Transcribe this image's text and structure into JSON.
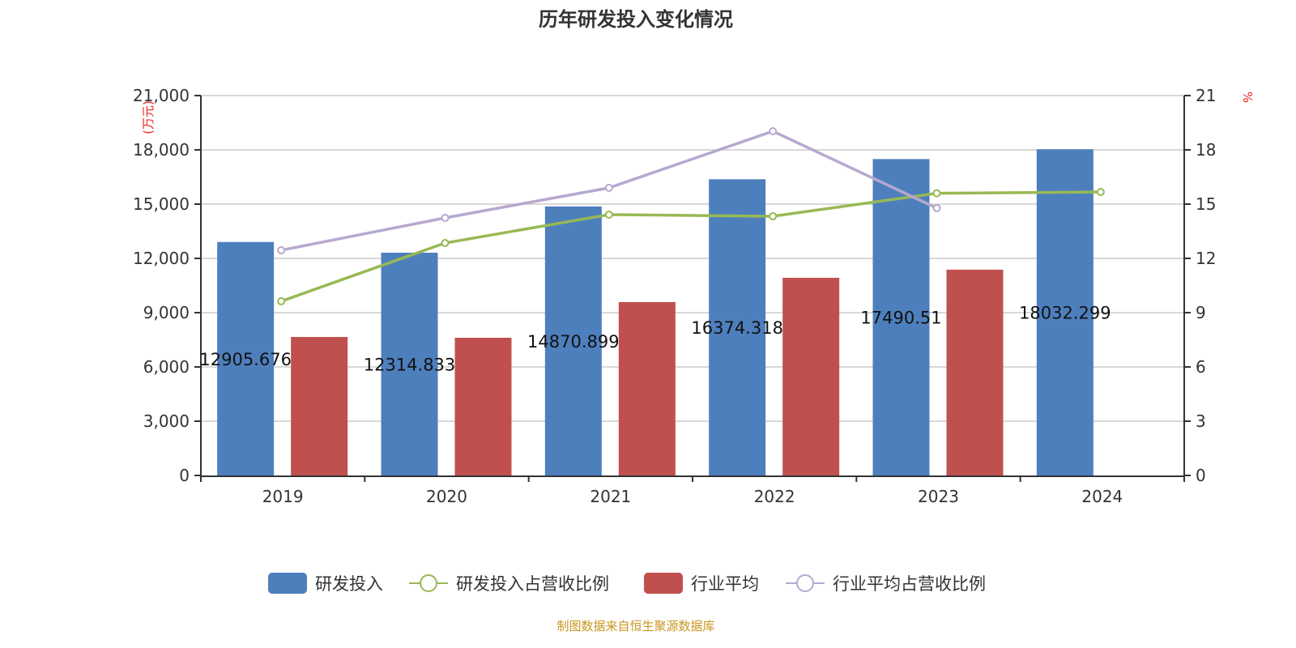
{
  "chart_data": {
    "type": "bar",
    "title": "历年研发投入变化情况",
    "categories": [
      "2019",
      "2020",
      "2021",
      "2022",
      "2023",
      "2024"
    ],
    "ylabel": "(万元)",
    "y2label": "%",
    "ylim": [
      0,
      21000
    ],
    "yticks": [
      "0",
      "3,000",
      "6,000",
      "9,000",
      "12,000",
      "15,000",
      "18,000",
      "21,000"
    ],
    "y2lim": [
      0,
      21
    ],
    "y2ticks": [
      "0",
      "3",
      "6",
      "9",
      "12",
      "15",
      "18",
      "21"
    ],
    "grid": true,
    "legend_position": "bottom",
    "series": [
      {
        "name": "研发投入",
        "kind": "bar",
        "axis": "left",
        "color": "#4e7fbd",
        "values": [
          12905.676,
          12314.833,
          14870.899,
          16374.318,
          17490.51,
          18032.299
        ],
        "labels": [
          "12905.676",
          "12314.833",
          "14870.899",
          "16374.318",
          "17490.51",
          "18032.299"
        ]
      },
      {
        "name": "研发投入占营收比例",
        "kind": "line",
        "axis": "right",
        "color": "#97b954",
        "values": [
          9.63,
          12.85,
          14.42,
          14.33,
          15.6,
          15.67
        ]
      },
      {
        "name": "行业平均",
        "kind": "bar",
        "axis": "left",
        "color": "#c0504d",
        "values": [
          7657,
          7613,
          9583,
          10927,
          11375,
          null
        ]
      },
      {
        "name": "行业平均占营收比例",
        "kind": "line",
        "axis": "right",
        "color": "#b6a8cf",
        "values": [
          12.45,
          14.24,
          15.9,
          19.03,
          14.78,
          null
        ]
      }
    ]
  },
  "footer": "制图数据来自恒生聚源数据库"
}
